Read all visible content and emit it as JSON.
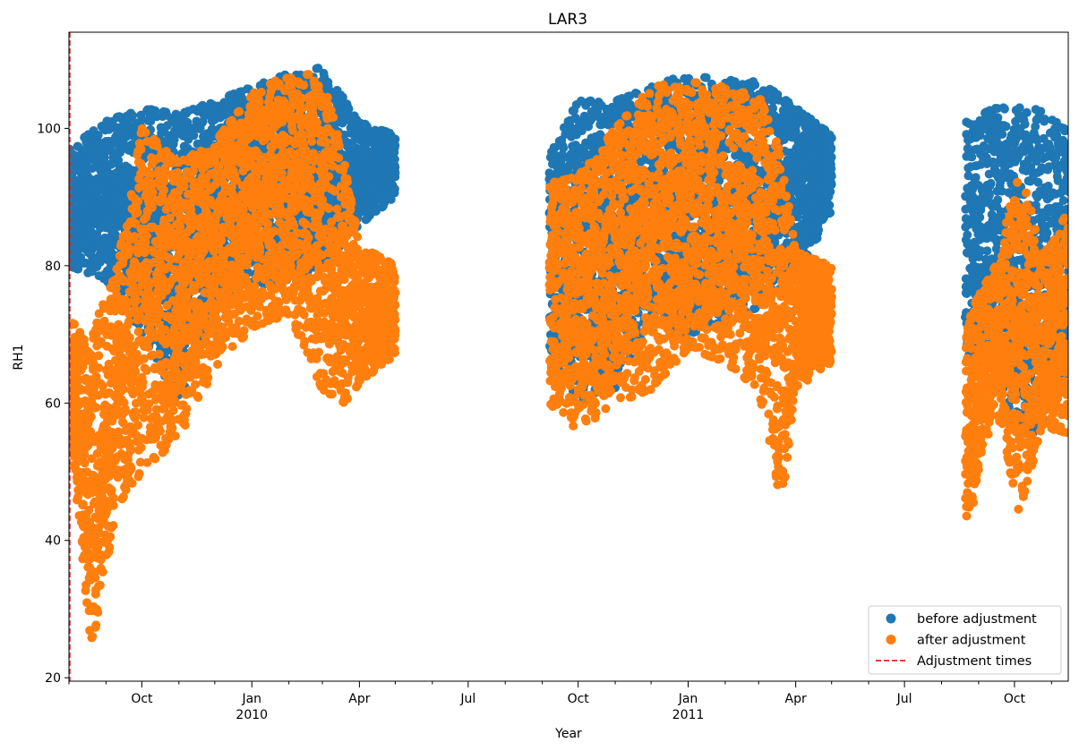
{
  "chart_data": {
    "type": "scatter",
    "title": "LAR3",
    "xlabel": "Year",
    "ylabel": "RH1",
    "x_range": [
      "2009-08-01",
      "2011-11-15"
    ],
    "ylim": [
      19.5,
      114
    ],
    "grid": false,
    "legend_position": "bottom-right",
    "y_ticks": [
      20,
      40,
      60,
      80,
      100
    ],
    "x_ticks": [
      {
        "date": "2009-10-01",
        "label": "Oct",
        "label2": ""
      },
      {
        "date": "2010-01-01",
        "label": "Jan",
        "label2": "2010"
      },
      {
        "date": "2010-04-01",
        "label": "Apr",
        "label2": ""
      },
      {
        "date": "2010-07-01",
        "label": "Jul",
        "label2": ""
      },
      {
        "date": "2010-10-01",
        "label": "Oct",
        "label2": ""
      },
      {
        "date": "2011-01-01",
        "label": "Jan",
        "label2": "2011"
      },
      {
        "date": "2011-04-01",
        "label": "Apr",
        "label2": ""
      },
      {
        "date": "2011-07-01",
        "label": "Jul",
        "label2": ""
      },
      {
        "date": "2011-10-01",
        "label": "Oct",
        "label2": ""
      }
    ],
    "minor_ticks": [
      "2009-08-01",
      "2009-09-01",
      "2009-11-01",
      "2009-12-01",
      "2010-02-01",
      "2010-03-01",
      "2010-05-01",
      "2010-06-01",
      "2010-08-01",
      "2010-09-01",
      "2010-11-01",
      "2010-12-01",
      "2011-02-01",
      "2011-03-01",
      "2011-05-01",
      "2011-06-01",
      "2011-08-01",
      "2011-09-01",
      "2011-11-01"
    ],
    "adjustment_times": [
      "2009-08-01"
    ],
    "series": [
      {
        "name": "before adjustment",
        "color": "#1f77b4",
        "segments": [
          {
            "start": "2009-08-01",
            "end": "2010-05-01"
          },
          {
            "start": "2010-09-07",
            "end": "2011-05-01"
          },
          {
            "start": "2011-08-21",
            "end": "2011-11-15"
          }
        ],
        "profile": [
          [
            "2009-08-01",
            80,
            97
          ],
          [
            "2009-09-01",
            78,
            101
          ],
          [
            "2009-10-01",
            70,
            103
          ],
          [
            "2009-11-01",
            60,
            102
          ],
          [
            "2009-12-01",
            70,
            104
          ],
          [
            "2010-01-01",
            77,
            106
          ],
          [
            "2010-02-01",
            78,
            108
          ],
          [
            "2010-03-01",
            80,
            109
          ],
          [
            "2010-04-01",
            86,
            101
          ],
          [
            "2010-05-01",
            90,
            99
          ],
          [
            "2010-09-07",
            66,
            96
          ],
          [
            "2010-10-01",
            60,
            104
          ],
          [
            "2010-11-01",
            62,
            104
          ],
          [
            "2010-12-01",
            72,
            106
          ],
          [
            "2011-01-01",
            70,
            108
          ],
          [
            "2011-02-01",
            72,
            107
          ],
          [
            "2011-03-01",
            74,
            107
          ],
          [
            "2011-04-01",
            78,
            103
          ],
          [
            "2011-05-01",
            88,
            99
          ],
          [
            "2011-08-21",
            66,
            101
          ],
          [
            "2011-09-15",
            62,
            103
          ],
          [
            "2011-10-15",
            55,
            103
          ],
          [
            "2011-11-15",
            64,
            101
          ]
        ]
      },
      {
        "name": "after adjustment",
        "color": "#ff7f0e",
        "segments": [
          {
            "start": "2009-08-01",
            "end": "2010-05-01"
          },
          {
            "start": "2010-09-07",
            "end": "2011-05-01"
          },
          {
            "start": "2011-08-21",
            "end": "2011-11-15"
          }
        ],
        "profile": [
          [
            "2009-08-01",
            57,
            72
          ],
          [
            "2009-08-20",
            24,
            70
          ],
          [
            "2009-09-10",
            45,
            80
          ],
          [
            "2009-10-01",
            50,
            100
          ],
          [
            "2009-11-01",
            55,
            95
          ],
          [
            "2009-12-01",
            65,
            98
          ],
          [
            "2010-01-01",
            71,
            105
          ],
          [
            "2010-02-01",
            73,
            108
          ],
          [
            "2010-03-01",
            62,
            108
          ],
          [
            "2010-03-20",
            60,
            95
          ],
          [
            "2010-04-01",
            63,
            83
          ],
          [
            "2010-05-01",
            67,
            80
          ],
          [
            "2010-09-07",
            60,
            92
          ],
          [
            "2010-10-01",
            56,
            93
          ],
          [
            "2010-11-01",
            60,
            100
          ],
          [
            "2010-12-01",
            62,
            106
          ],
          [
            "2011-01-01",
            68,
            107
          ],
          [
            "2011-02-01",
            66,
            106
          ],
          [
            "2011-03-01",
            62,
            105
          ],
          [
            "2011-03-20",
            45,
            96
          ],
          [
            "2011-04-01",
            62,
            82
          ],
          [
            "2011-05-01",
            66,
            80
          ],
          [
            "2011-08-21",
            40,
            72
          ],
          [
            "2011-09-15",
            60,
            80
          ],
          [
            "2011-10-05",
            44,
            94
          ],
          [
            "2011-10-25",
            57,
            82
          ],
          [
            "2011-11-15",
            55,
            88
          ]
        ]
      }
    ],
    "legend": [
      {
        "label": "before adjustment",
        "marker": "dot",
        "color": "#1f77b4"
      },
      {
        "label": "after adjustment",
        "marker": "dot",
        "color": "#ff7f0e"
      },
      {
        "label": "Adjustment times",
        "marker": "dashed-line",
        "color": "#d62728"
      }
    ]
  }
}
